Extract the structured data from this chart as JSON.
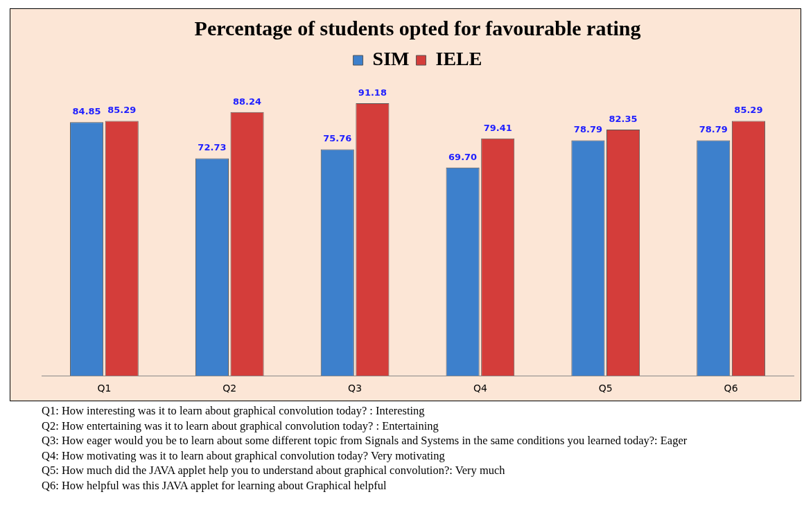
{
  "chart_data": {
    "type": "bar",
    "title": "Percentage of students opted for favourable rating",
    "categories": [
      "Q1",
      "Q2",
      "Q3",
      "Q4",
      "Q5",
      "Q6"
    ],
    "series": [
      {
        "name": "SIM",
        "color": "#3d80cc",
        "values": [
          84.85,
          72.73,
          75.76,
          69.7,
          78.79,
          78.79
        ],
        "value_labels": [
          "84.85",
          "72.73",
          "75.76",
          "69.70",
          "78.79",
          "78.79"
        ]
      },
      {
        "name": "IELE",
        "color": "#d43d3a",
        "values": [
          85.29,
          88.24,
          91.18,
          79.41,
          82.35,
          85.29
        ],
        "value_labels": [
          "85.29",
          "88.24",
          "91.18",
          "79.41",
          "82.35",
          "85.29"
        ]
      }
    ],
    "tick_labels": "x",
    "legend": "top",
    "grid": false,
    "annotations": [
      "Q1: How interesting was it to learn about graphical convolution today? : Interesting",
      "Q2: How entertaining was it to learn about graphical convolution today? : Entertaining",
      "Q3: How eager would you be to learn about some different topic from Signals and Systems in the same conditions you learned today?: Eager",
      "Q4: How motivating was it to learn about graphical convolution today? Very motivating",
      "Q5: How much did the JAVA applet help you to understand about graphical convolution?: Very much",
      "Q6: How helpful was this JAVA applet for learning about Graphical helpful"
    ]
  }
}
